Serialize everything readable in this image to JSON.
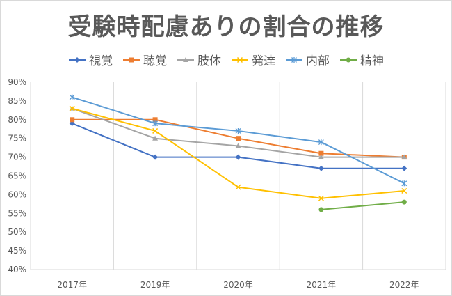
{
  "chart_data": {
    "type": "line",
    "title": "受験時配慮ありの割合の推移",
    "categories": [
      "2017年",
      "2019年",
      "2020年",
      "2021年",
      "2022年"
    ],
    "ylim": [
      40,
      90
    ],
    "yticks": [
      "40%",
      "45%",
      "50%",
      "55%",
      "60%",
      "65%",
      "70%",
      "75%",
      "80%",
      "85%",
      "90%"
    ],
    "grid": "vertical",
    "legend_position": "top",
    "series": [
      {
        "name": "視覚",
        "color": "#4472c4",
        "marker": "diamond",
        "values": [
          79,
          70,
          70,
          67,
          67
        ]
      },
      {
        "name": "聴覚",
        "color": "#ed7d31",
        "marker": "square",
        "values": [
          80,
          80,
          75,
          71,
          70
        ]
      },
      {
        "name": "肢体",
        "color": "#a5a5a5",
        "marker": "triangle",
        "values": [
          83,
          75,
          73,
          70,
          70
        ]
      },
      {
        "name": "発達",
        "color": "#ffc000",
        "marker": "x",
        "values": [
          83,
          77,
          62,
          59,
          61
        ]
      },
      {
        "name": "内部",
        "color": "#5b9bd5",
        "marker": "star",
        "values": [
          86,
          79,
          77,
          74,
          63
        ]
      },
      {
        "name": "精神",
        "color": "#70ad47",
        "marker": "circle",
        "values": [
          null,
          null,
          null,
          56,
          58
        ]
      }
    ]
  }
}
